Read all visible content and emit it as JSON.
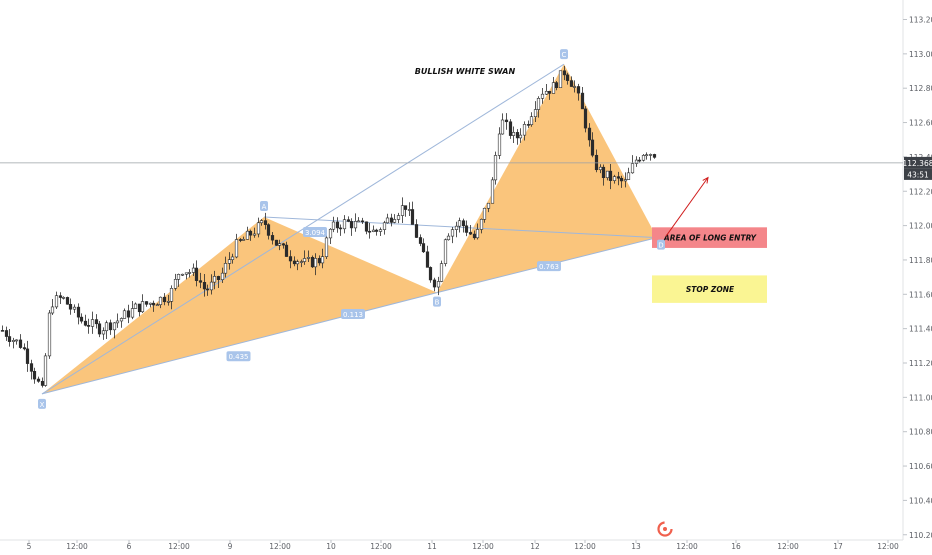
{
  "chart_data": {
    "type": "candlestick",
    "instrument_view": "price chart with harmonic pattern overlay",
    "price_axis": {
      "ylim": [
        110.14,
        113.28
      ],
      "ticks": [
        "113.200",
        "113.000",
        "112.800",
        "112.600",
        "112.400",
        "112.200",
        "112.000",
        "111.800",
        "111.600",
        "111.400",
        "111.200",
        "111.000",
        "110.800",
        "110.600",
        "110.400",
        "110.200"
      ],
      "current_price": "112.368",
      "countdown": "43:51"
    },
    "time_axis": {
      "ticks": [
        "5",
        "12:00",
        "6",
        "12:00",
        "9",
        "12:00",
        "10",
        "12:00",
        "11",
        "12:00",
        "12",
        "12:00",
        "13",
        "12:00",
        "16",
        "12:00",
        "17",
        "12:00"
      ]
    },
    "pattern": {
      "title": "BULLISH WHITE SWAN",
      "points": [
        {
          "label": "X",
          "bar": 42,
          "price": 111.02
        },
        {
          "label": "A",
          "bar": 264,
          "price": 112.05
        },
        {
          "label": "B",
          "bar": 437,
          "price": 111.61
        },
        {
          "label": "C",
          "bar": 564,
          "price": 112.94
        },
        {
          "label": "D",
          "bar": 657,
          "price": 111.93
        }
      ],
      "ratios": [
        {
          "between": "X-C",
          "value": "3.094"
        },
        {
          "between": "X-B",
          "value": "0.435"
        },
        {
          "between": "A-D",
          "value": "0.113"
        },
        {
          "between": "B-D",
          "value": "0.763"
        }
      ],
      "fill_color": "#f9b65b",
      "line_color": "#9fb7da"
    },
    "zones": [
      {
        "label": "AREA OF LONG ENTRY",
        "color": "#f4868a",
        "from": 111.87,
        "to": 111.99
      },
      {
        "label": "STOP ZONE",
        "color": "#faf593",
        "from": 111.55,
        "to": 111.71
      }
    ],
    "projection_arrow": {
      "color": "#d01c1c",
      "from_price": 111.95,
      "to_price": 112.28
    },
    "watermark_icon": "tradingview-logo-icon"
  }
}
